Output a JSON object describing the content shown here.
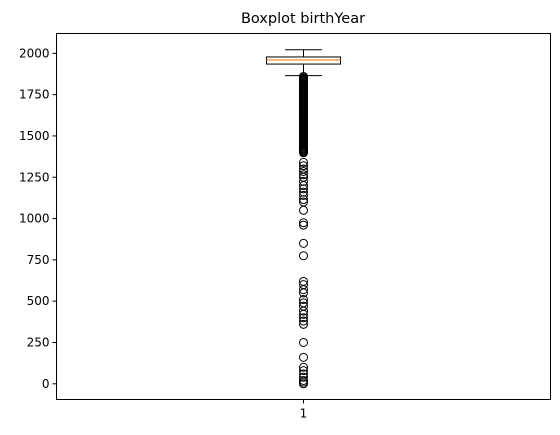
{
  "chart_data": {
    "type": "boxplot",
    "title": "Boxplot birthYear",
    "xlabel": "",
    "ylabel": "",
    "categories": [
      "1"
    ],
    "ylim": [
      -95,
      2120
    ],
    "yticks": [
      0,
      250,
      500,
      750,
      1000,
      1250,
      1500,
      1750,
      2000
    ],
    "grid": false,
    "box": {
      "whisker_low": 1865,
      "q1": 1935,
      "median": 1960,
      "q3": 1978,
      "whisker_high": 2022
    },
    "outliers": [
      1860,
      1854,
      1848,
      1842,
      1836,
      1830,
      1824,
      1818,
      1812,
      1806,
      1800,
      1794,
      1788,
      1782,
      1776,
      1770,
      1764,
      1758,
      1752,
      1746,
      1740,
      1734,
      1728,
      1722,
      1716,
      1710,
      1704,
      1698,
      1692,
      1686,
      1680,
      1674,
      1668,
      1662,
      1656,
      1650,
      1644,
      1638,
      1632,
      1626,
      1620,
      1614,
      1608,
      1602,
      1596,
      1590,
      1584,
      1578,
      1572,
      1566,
      1560,
      1554,
      1548,
      1542,
      1536,
      1530,
      1524,
      1518,
      1512,
      1506,
      1500,
      1494,
      1488,
      1482,
      1476,
      1470,
      1464,
      1458,
      1452,
      1446,
      1440,
      1434,
      1428,
      1422,
      1416,
      1410,
      1404,
      1398,
      1340,
      1320,
      1300,
      1285,
      1265,
      1250,
      1225,
      1200,
      1180,
      1160,
      1140,
      1115,
      1100,
      1050,
      975,
      960,
      850,
      775,
      620,
      600,
      570,
      550,
      510,
      490,
      470,
      440,
      420,
      400,
      380,
      360,
      250,
      160,
      100,
      80,
      60,
      40,
      20,
      10,
      0
    ]
  }
}
